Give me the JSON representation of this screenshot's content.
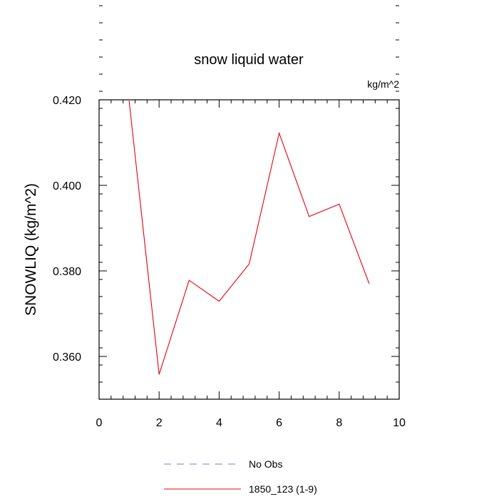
{
  "chart_data": {
    "type": "line",
    "title": "snow liquid water",
    "units_label": "kg/m^2",
    "xlabel": "",
    "ylabel": "SNOWLIQ  (kg/m^2)",
    "xlim": [
      0,
      10
    ],
    "ylim": [
      0.35,
      0.42
    ],
    "x_ticks": [
      0,
      2,
      4,
      6,
      8,
      10
    ],
    "x_tick_labels": [
      "0",
      "2",
      "4",
      "6",
      "8",
      "10"
    ],
    "y_ticks": [
      0.36,
      0.38,
      0.4,
      0.42
    ],
    "y_tick_labels": [
      "0.360",
      "0.380",
      "0.400",
      "0.420"
    ],
    "grid": false,
    "legend_position": "bottom",
    "series": [
      {
        "name": "1850_123 (1-9)",
        "color": "#e8000b",
        "x": [
          1,
          2,
          3,
          4,
          5,
          6,
          7,
          8,
          9
        ],
        "y": [
          0.4198,
          0.3558,
          0.3778,
          0.3729,
          0.3816,
          0.4122,
          0.3927,
          0.3956,
          0.377
        ]
      }
    ],
    "legend": [
      {
        "label": "No Obs",
        "color": "#7b7bd8",
        "dash": true
      },
      {
        "label": "1850_123 (1-9)",
        "color": "#e8000b",
        "dash": false
      }
    ]
  }
}
